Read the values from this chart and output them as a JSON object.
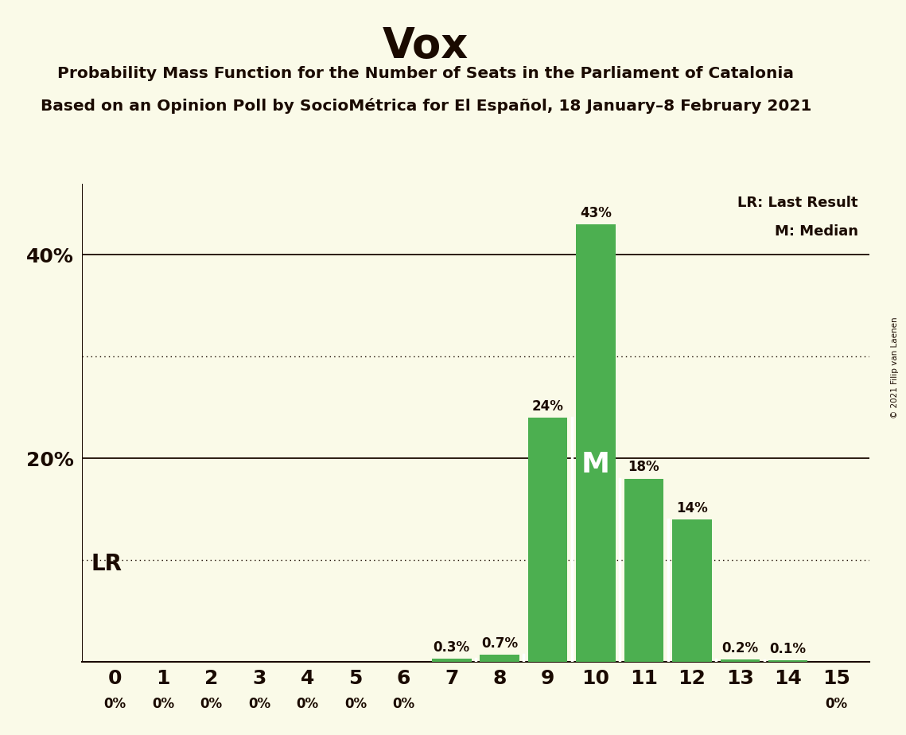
{
  "title": "Vox",
  "subtitle1": "Probability Mass Function for the Number of Seats in the Parliament of Catalonia",
  "subtitle2": "Based on an Opinion Poll by SocioMétrica for El Español, 18 January–8 February 2021",
  "copyright": "© 2021 Filip van Laenen",
  "categories": [
    0,
    1,
    2,
    3,
    4,
    5,
    6,
    7,
    8,
    9,
    10,
    11,
    12,
    13,
    14,
    15
  ],
  "values": [
    0,
    0,
    0,
    0,
    0,
    0,
    0,
    0.3,
    0.7,
    24,
    43,
    18,
    14,
    0.2,
    0.1,
    0
  ],
  "bar_color": "#4caf50",
  "background_color": "#fafae8",
  "title_color": "#1a0a00",
  "text_color": "#1a0a00",
  "median_seat": 10,
  "ylim": [
    0,
    47
  ],
  "solid_gridlines": [
    20,
    40
  ],
  "dotted_gridlines": [
    10,
    30
  ],
  "legend_lr": "LR: Last Result",
  "legend_m": "M: Median",
  "lr_annotation": "LR"
}
